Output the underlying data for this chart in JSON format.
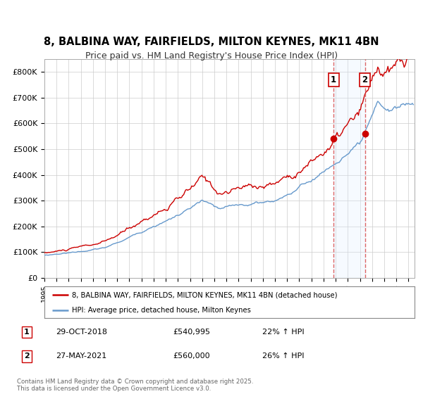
{
  "title_line1": "8, BALBINA WAY, FAIRFIELDS, MILTON KEYNES, MK11 4BN",
  "title_line2": "Price paid vs. HM Land Registry's House Price Index (HPI)",
  "title_fontsize": 10.5,
  "subtitle_fontsize": 9.0,
  "ylabel_ticks": [
    "£0",
    "£100K",
    "£200K",
    "£300K",
    "£400K",
    "£500K",
    "£600K",
    "£700K",
    "£800K"
  ],
  "ytick_values": [
    0,
    100000,
    200000,
    300000,
    400000,
    500000,
    600000,
    700000,
    800000
  ],
  "ylim": [
    0,
    850000
  ],
  "xlim_start": 1995.0,
  "xlim_end": 2025.5,
  "xlabel_years": [
    1995,
    1996,
    1997,
    1998,
    1999,
    2000,
    2001,
    2002,
    2003,
    2004,
    2005,
    2006,
    2007,
    2008,
    2009,
    2010,
    2011,
    2012,
    2013,
    2014,
    2015,
    2016,
    2017,
    2018,
    2019,
    2020,
    2021,
    2022,
    2023,
    2024,
    2025
  ],
  "red_line_color": "#cc0000",
  "blue_line_color": "#6699cc",
  "background_color": "#ffffff",
  "plot_background_color": "#ffffff",
  "grid_color": "#cccccc",
  "marker1_x": 2018.83,
  "marker1_y": 540995,
  "marker2_x": 2021.41,
  "marker2_y": 560000,
  "vline1_x": 2018.83,
  "vline2_x": 2021.41,
  "vline_color": "#dd6666",
  "shade_color": "#ddeeff",
  "legend_label_red": "8, BALBINA WAY, FAIRFIELDS, MILTON KEYNES, MK11 4BN (detached house)",
  "legend_label_blue": "HPI: Average price, detached house, Milton Keynes",
  "annotation1_date": "29-OCT-2018",
  "annotation1_price": "£540,995",
  "annotation1_hpi": "22% ↑ HPI",
  "annotation2_date": "27-MAY-2021",
  "annotation2_price": "£560,000",
  "annotation2_hpi": "26% ↑ HPI",
  "footer_text": "Contains HM Land Registry data © Crown copyright and database right 2025.\nThis data is licensed under the Open Government Licence v3.0."
}
